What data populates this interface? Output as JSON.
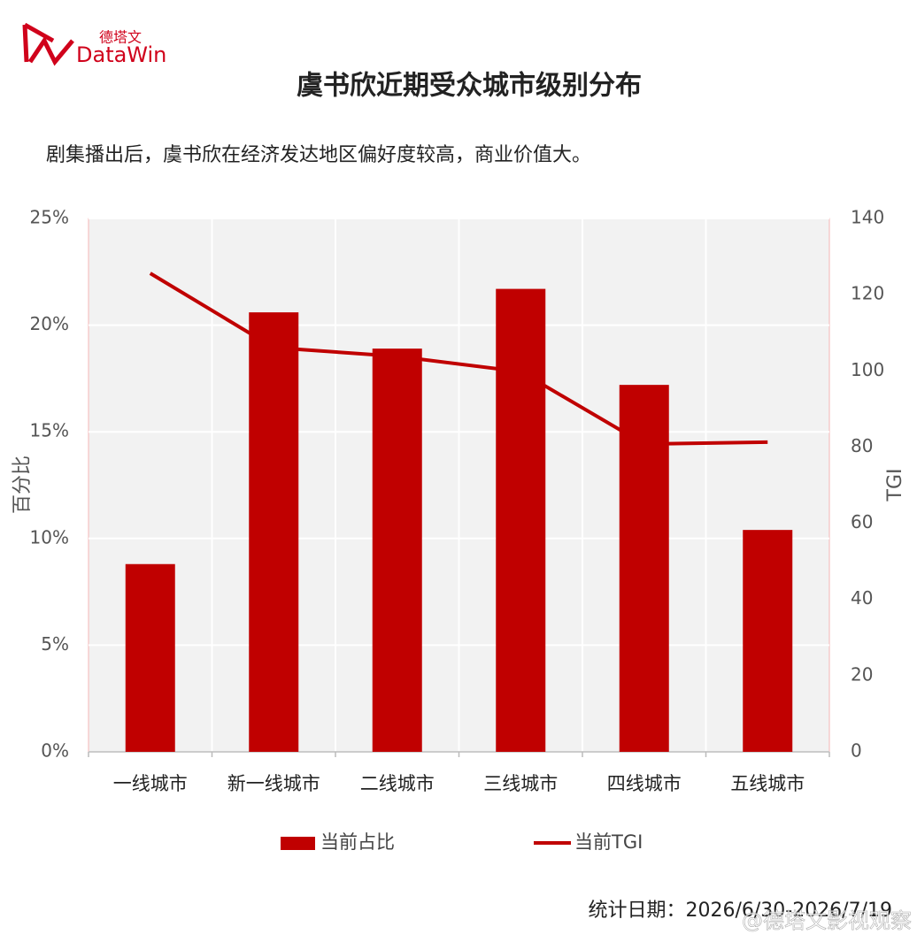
{
  "logo": {
    "cn": "德塔文",
    "en": "DataWin"
  },
  "chart_data": {
    "type": "bar-line",
    "title": "虞书欣近期受众城市级别分布",
    "subtitle": "剧集播出后，虞书欣在经济发达地区偏好度较高，商业价值大。",
    "ylabel": "百分比",
    "y2label": "TGI",
    "categories": [
      "一线城市",
      "新一线城市",
      "二线城市",
      "三线城市",
      "四线城市",
      "五线城市"
    ],
    "series": [
      {
        "name": "当前占比",
        "type": "bar",
        "color": "#c00000",
        "values": [
          8.8,
          20.6,
          18.9,
          21.7,
          17.2,
          10.4
        ]
      },
      {
        "name": "当前TGI",
        "type": "line",
        "axis": "y2",
        "color": "#c00000",
        "values": [
          125.6,
          106.1,
          103.8,
          99.8,
          80.8,
          81.3
        ]
      }
    ],
    "ylim": [
      0,
      25
    ],
    "yticks": [
      {
        "value": 0,
        "label": "0%"
      },
      {
        "value": 5,
        "label": "5%"
      },
      {
        "value": 10,
        "label": "10%"
      },
      {
        "value": 15,
        "label": "15%"
      },
      {
        "value": 20,
        "label": "20%"
      },
      {
        "value": 25,
        "label": "25%"
      }
    ],
    "y2lim": [
      0,
      140
    ],
    "y2ticks": [
      0,
      20,
      40,
      60,
      80,
      100,
      120,
      140
    ],
    "grid": true,
    "legend": "bottom",
    "footer": "统计日期：2026/6/30-2026/7/19",
    "watermark": "@德塔文影视观察"
  }
}
